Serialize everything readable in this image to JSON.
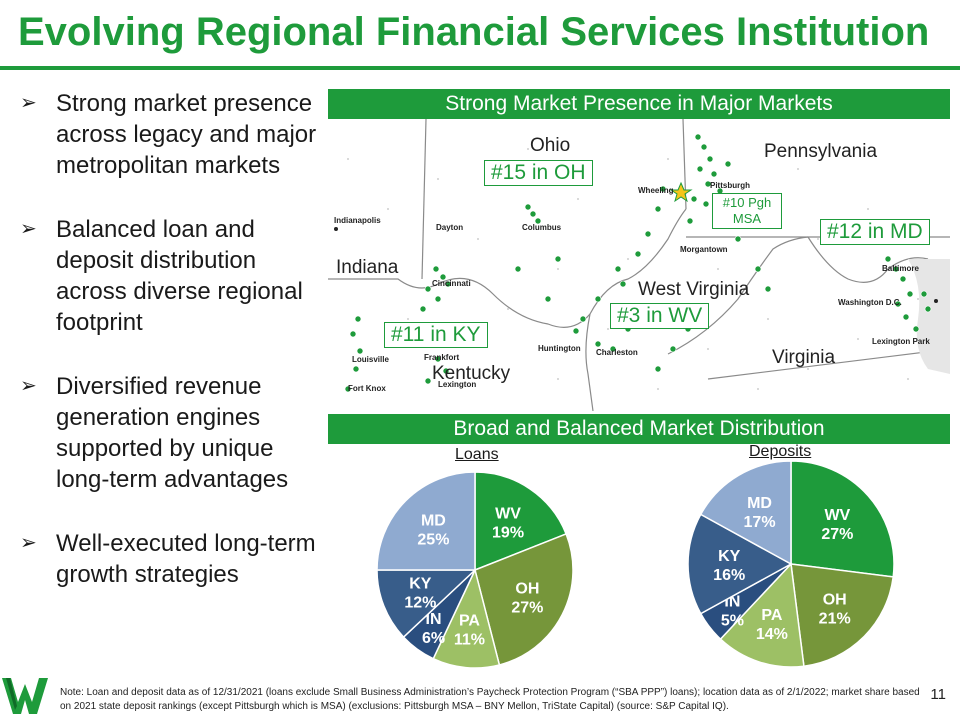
{
  "title": "Evolving Regional Financial Services Institution",
  "bullets": [
    "Strong market presence across legacy and major metropolitan markets",
    "Balanced loan and deposit distribution across diverse regional footprint",
    "Diversified revenue generation engines supported by unique long-term advantages",
    "Well-executed long-term growth strategies"
  ],
  "map_banner": "Strong Market Presence in Major Markets",
  "states": {
    "ohio": "Ohio",
    "pennsylvania": "Pennsylvania",
    "indiana": "Indiana",
    "west_virginia": "West Virginia",
    "kentucky": "Kentucky",
    "virginia": "Virginia"
  },
  "cities": {
    "indianapolis": "Indianapolis",
    "dayton": "Dayton",
    "columbus": "Columbus",
    "wheeling": "Wheeling",
    "pittsburgh": "Pittsburgh",
    "morgantown": "Morgantown",
    "cincinnati": "Cincinnati",
    "baltimore": "Baltimore",
    "washington": "Washington D.C.",
    "lexington_park": "Lexington Park",
    "huntington": "Huntington",
    "charleston": "Charleston",
    "louisville": "Louisville",
    "frankfort": "Frankfort",
    "lexington": "Lexington",
    "fort_knox": "Fort Knox"
  },
  "ranks": {
    "oh": "#15 in OH",
    "pgh": "#10 Pgh MSA",
    "md": "#12 in MD",
    "wv": "#3 in WV",
    "ky": "#11 in KY"
  },
  "distribution_banner": "Broad and Balanced Market Distribution",
  "chart_data": [
    {
      "type": "pie",
      "title": "Loans",
      "categories": [
        "WV",
        "OH",
        "PA",
        "IN",
        "KY",
        "MD"
      ],
      "values": [
        19,
        27,
        11,
        6,
        12,
        25
      ],
      "labels": [
        "19%",
        "27%",
        "11%",
        "6%",
        "12%",
        "25%"
      ],
      "colors": [
        "#1e9b3b",
        "#76963a",
        "#9dc065",
        "#2a4e7f",
        "#385d8a",
        "#8faad0"
      ]
    },
    {
      "type": "pie",
      "title": "Deposits",
      "categories": [
        "WV",
        "OH",
        "PA",
        "IN",
        "KY",
        "MD"
      ],
      "values": [
        27,
        21,
        14,
        5,
        16,
        17
      ],
      "labels": [
        "27%",
        "21%",
        "14%",
        "5%",
        "16%",
        "17%"
      ],
      "colors": [
        "#1e9b3b",
        "#76963a",
        "#9dc065",
        "#2a4e7f",
        "#385d8a",
        "#8faad0"
      ]
    }
  ],
  "footnote": "Note: Loan and deposit data as of 12/31/2021 (loans exclude Small Business Administration’s Paycheck Protection Program (“SBA PPP”) loans); location data as of 2/1/2022; market share based on 2021 state deposit rankings (except Pittsburgh which is MSA) (exclusions: Pittsburgh MSA – BNY Mellon, TriState Capital) (source: S&P Capital IQ).",
  "page_number": "11",
  "logo_icon": "wesbanco-w-logo-icon"
}
